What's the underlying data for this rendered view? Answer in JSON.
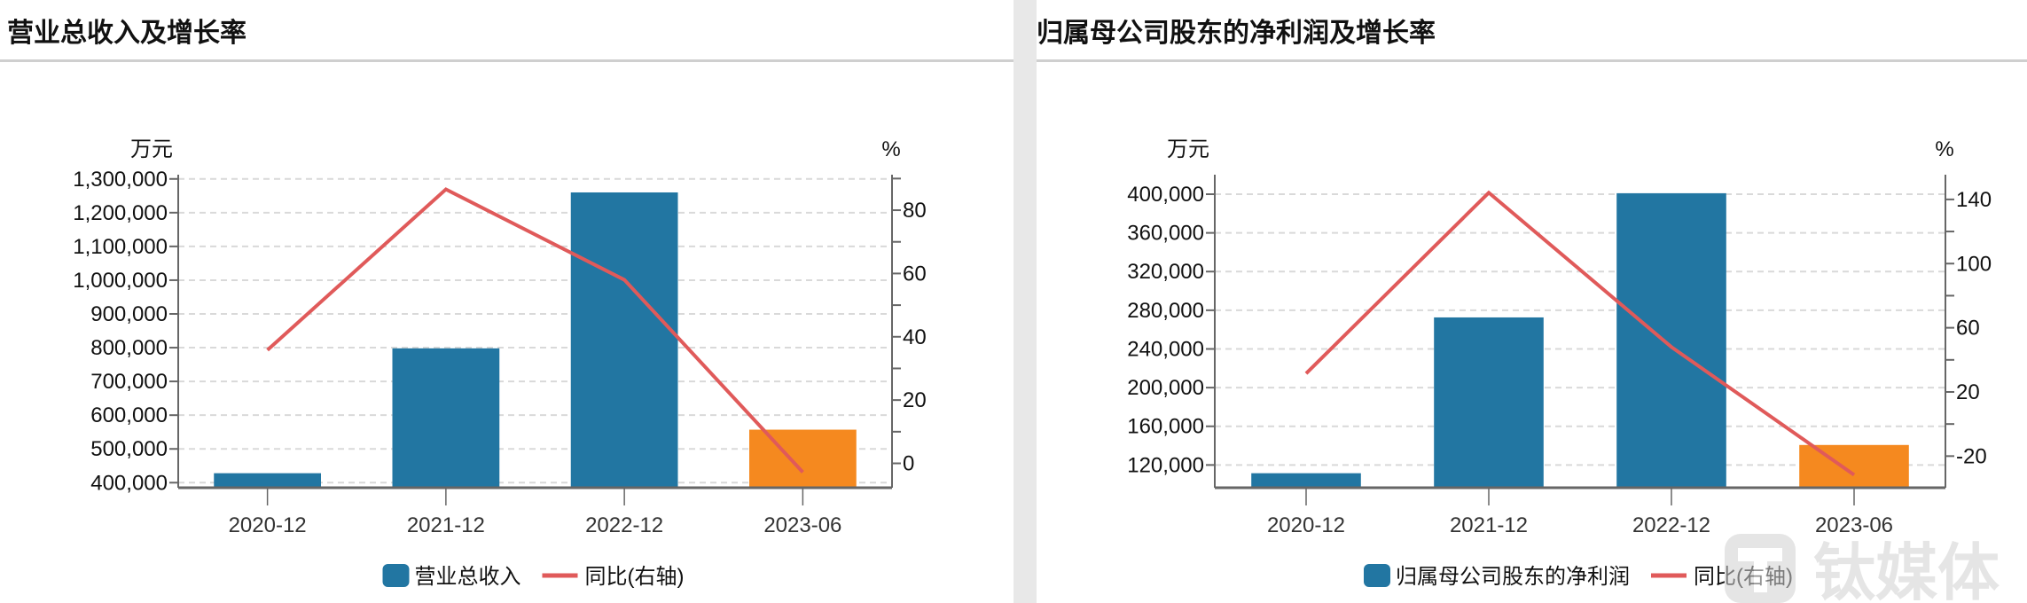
{
  "colors": {
    "bar": "#2276a2",
    "bar_highlight": "#f5891f",
    "line": "#e05a5a",
    "grid": "#d9d9d9",
    "axis": "#666666"
  },
  "watermark": {
    "text": "钛媒体"
  },
  "chart_data": [
    {
      "type": "bar+line",
      "title": "营业总收入及增长率",
      "categories": [
        "2020-12",
        "2021-12",
        "2022-12",
        "2023-06"
      ],
      "y_left_unit": "万元",
      "y_right_unit": "%",
      "y_left_ticks": [
        "400,000",
        "500,000",
        "600,000",
        "700,000",
        "800,000",
        "900,000",
        "1,000,000",
        "1,100,000",
        "1,200,000",
        "1,300,000"
      ],
      "y_left_tick_values": [
        400000,
        500000,
        600000,
        700000,
        800000,
        900000,
        1000000,
        1100000,
        1200000,
        1300000
      ],
      "y_right_ticks": [
        "0",
        "20",
        "40",
        "60",
        "80"
      ],
      "y_right_tick_values": [
        0,
        20,
        40,
        60,
        80
      ],
      "y_right_minor_values": [
        10,
        30,
        50,
        70,
        90
      ],
      "ylim_left": [
        385000,
        1302000
      ],
      "ylim_right": [
        -7.7,
        90.1
      ],
      "grid": true,
      "legend": "bottom",
      "series": [
        {
          "name": "营业总收入",
          "type": "bar",
          "axis": "left",
          "values": [
            428000,
            798000,
            1260000,
            557000
          ]
        },
        {
          "name": "同比(右轴)",
          "type": "line",
          "axis": "right",
          "values": [
            35.8,
            86.6,
            58.0,
            -2.8
          ]
        }
      ],
      "highlight_index": 3
    },
    {
      "type": "bar+line",
      "title": "归属母公司股东的净利润及增长率",
      "categories": [
        "2020-12",
        "2021-12",
        "2022-12",
        "2023-06"
      ],
      "y_left_unit": "万元",
      "y_right_unit": "%",
      "y_left_ticks": [
        "120,000",
        "160,000",
        "200,000",
        "240,000",
        "280,000",
        "320,000",
        "360,000",
        "400,000"
      ],
      "y_left_tick_values": [
        120000,
        160000,
        200000,
        240000,
        280000,
        320000,
        360000,
        400000
      ],
      "y_right_ticks": [
        "-20",
        "20",
        "60",
        "100",
        "140"
      ],
      "y_right_tick_values": [
        -20,
        20,
        60,
        100,
        140
      ],
      "y_right_minor_values": [
        0,
        40,
        80,
        120
      ],
      "ylim_left": [
        96500,
        416500
      ],
      "ylim_right": [
        -39.7,
        153.2
      ],
      "grid": true,
      "legend": "bottom",
      "series": [
        {
          "name": "归属母公司股东的净利润",
          "type": "bar",
          "axis": "left",
          "values": [
            111500,
            272600,
            401000,
            140700
          ]
        },
        {
          "name": "同比(右轴)",
          "type": "line",
          "axis": "right",
          "values": [
            31.5,
            144.2,
            48.0,
            -31.7
          ]
        }
      ],
      "highlight_index": 3
    }
  ]
}
